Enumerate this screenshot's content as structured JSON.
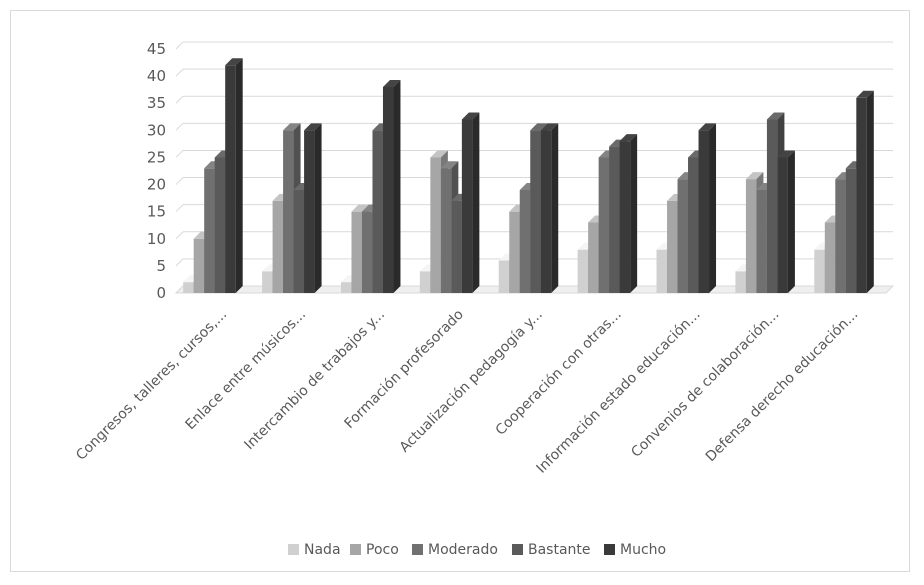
{
  "chart_data": {
    "type": "bar",
    "title": "",
    "xlabel": "",
    "ylabel": "",
    "ylim": [
      0,
      45
    ],
    "yticks": [
      0,
      5,
      10,
      15,
      20,
      25,
      30,
      35,
      40,
      45
    ],
    "grid": true,
    "legend_position": "bottom",
    "style": "3d-clustered-column",
    "categories": [
      "Congresos, talleres, cursos,...",
      "Enlace entre músicos...",
      "Intercambio de trabajos y...",
      "Formación profesorado",
      "Actualización pedagogía y...",
      "Cooperación con otras...",
      "Información estado educación...",
      "Convenios de colaboración...",
      "Defensa derecho educación..."
    ],
    "series": [
      {
        "name": "Nada",
        "color": "#d0d0d0",
        "values": [
          2,
          4,
          2,
          4,
          6,
          8,
          8,
          4,
          8
        ]
      },
      {
        "name": "Poco",
        "color": "#a6a6a6",
        "values": [
          10,
          17,
          15,
          25,
          15,
          13,
          17,
          21,
          13
        ]
      },
      {
        "name": "Moderado",
        "color": "#707070",
        "values": [
          23,
          30,
          15,
          23,
          19,
          25,
          21,
          19,
          21
        ]
      },
      {
        "name": "Bastante",
        "color": "#5a5a5a",
        "values": [
          25,
          19,
          30,
          17,
          30,
          27,
          25,
          32,
          23
        ]
      },
      {
        "name": "Mucho",
        "color": "#3a3a3a",
        "values": [
          42,
          30,
          38,
          32,
          30,
          28,
          30,
          25,
          36
        ]
      }
    ]
  }
}
